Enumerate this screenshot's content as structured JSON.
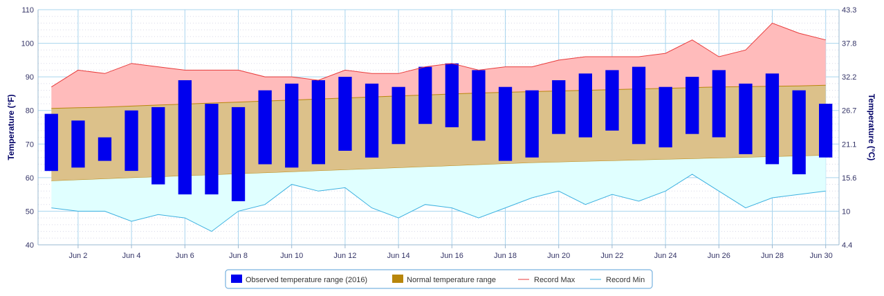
{
  "chart_data": {
    "type": "bar",
    "x_categories": [
      "Jun 1",
      "Jun 2",
      "Jun 3",
      "Jun 4",
      "Jun 5",
      "Jun 6",
      "Jun 7",
      "Jun 8",
      "Jun 9",
      "Jun 10",
      "Jun 11",
      "Jun 12",
      "Jun 13",
      "Jun 14",
      "Jun 15",
      "Jun 16",
      "Jun 17",
      "Jun 18",
      "Jun 19",
      "Jun 20",
      "Jun 21",
      "Jun 22",
      "Jun 23",
      "Jun 24",
      "Jun 25",
      "Jun 26",
      "Jun 27",
      "Jun 28",
      "Jun 29",
      "Jun 30"
    ],
    "x_tick_labels": [
      "Jun 2",
      "Jun 4",
      "Jun 6",
      "Jun 8",
      "Jun 10",
      "Jun 12",
      "Jun 14",
      "Jun 16",
      "Jun 18",
      "Jun 20",
      "Jun 22",
      "Jun 24",
      "Jun 26",
      "Jun 28",
      "Jun 30"
    ],
    "y_left": {
      "label": "Temperature (°F)",
      "range": [
        40,
        110
      ],
      "ticks": [
        "40",
        "50",
        "60",
        "70",
        "80",
        "90",
        "100",
        "110"
      ]
    },
    "y_right": {
      "label": "Temperature (°C)",
      "range": [
        4.4,
        43.3
      ],
      "ticks": [
        "4.4",
        "10",
        "15.6",
        "21.1",
        "26.7",
        "32.2",
        "37.8",
        "43.3"
      ]
    },
    "grid": true,
    "legend_position": "bottom-center",
    "series": [
      {
        "name": "Observed temperature range (2016)",
        "kind": "columnrange",
        "color": "#0000ee",
        "low": [
          62,
          63,
          65,
          62,
          58,
          55,
          55,
          53,
          64,
          63,
          64,
          68,
          66,
          70,
          76,
          75,
          71,
          65,
          66,
          73,
          72,
          74,
          70,
          69,
          73,
          72,
          67,
          64,
          61,
          66
        ],
        "high": [
          79,
          77,
          72,
          80,
          81,
          89,
          82,
          81,
          86,
          88,
          89,
          90,
          88,
          87,
          93,
          94,
          92,
          87,
          86,
          89,
          91,
          92,
          93,
          87,
          90,
          92,
          88,
          91,
          86,
          82
        ]
      },
      {
        "name": "Normal temperature range",
        "kind": "arearange",
        "color": "#b8860b",
        "low": [
          59.0,
          59.3,
          59.6,
          59.9,
          60.2,
          60.5,
          60.8,
          61.1,
          61.4,
          61.7,
          62.0,
          62.3,
          62.6,
          62.9,
          63.2,
          63.5,
          63.8,
          64.1,
          64.4,
          64.6,
          64.8,
          65.0,
          65.2,
          65.4,
          65.6,
          65.8,
          66.0,
          66.2,
          66.4,
          66.6
        ],
        "high": [
          80.6,
          80.8,
          81.0,
          81.3,
          81.6,
          81.9,
          82.2,
          82.5,
          82.8,
          83.1,
          83.4,
          83.7,
          84.0,
          84.3,
          84.6,
          84.9,
          85.2,
          85.4,
          85.6,
          85.8,
          86.0,
          86.2,
          86.4,
          86.6,
          86.8,
          87.0,
          87.1,
          87.2,
          87.3,
          87.5
        ]
      },
      {
        "name": "Record Max",
        "kind": "line",
        "color": "#e83a3a",
        "fill": "#ffbbbb",
        "values": [
          87,
          92,
          91,
          94,
          93,
          92,
          92,
          92,
          90,
          90,
          89,
          92,
          91,
          91,
          93,
          94,
          92,
          93,
          93,
          95,
          96,
          96,
          96,
          97,
          101,
          96,
          98,
          106,
          103,
          101
        ]
      },
      {
        "name": "Record Min",
        "kind": "line",
        "color": "#3bb0e0",
        "fill": "#e0ffff",
        "values": [
          51,
          50,
          50,
          47,
          49,
          48,
          44,
          50,
          52,
          58,
          56,
          57,
          51,
          48,
          52,
          51,
          48,
          51,
          54,
          56,
          52,
          55,
          53,
          56,
          61,
          56,
          51,
          54,
          55,
          56
        ]
      }
    ]
  }
}
